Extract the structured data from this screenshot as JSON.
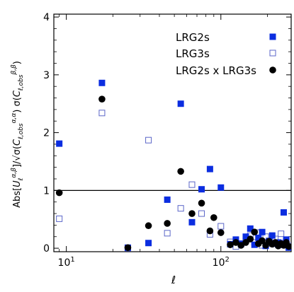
{
  "chart_data": {
    "type": "scatter",
    "xlabel": "ℓ",
    "ylabel": "Abs[U_ℓ^{α,β}]/√(σ(C_{ℓ,obs}^{α,α}) σ(C_{ℓ,obs}^{β,β}))",
    "xscale": "log",
    "xlim": [
      8.3,
      285
    ],
    "ylim": [
      -0.06,
      4.05
    ],
    "x_ticks": [
      {
        "value": 10,
        "label": "10",
        "exp": "1"
      },
      {
        "value": 100,
        "label": "10",
        "exp": "2"
      }
    ],
    "y_ticks": [
      0,
      1,
      2,
      3,
      4
    ],
    "y_tick_labels": [
      "0",
      "1",
      "2",
      "3",
      "4"
    ],
    "reference_line": {
      "y": 1
    },
    "grid": false,
    "legend_position": "top-right",
    "colors": {
      "lrg2s": "#0b2de0",
      "lrg3s": "#5b66c8",
      "cross": "#000000"
    },
    "series": [
      {
        "name": "LRG2s",
        "marker": "filled-square",
        "color": "#0b2de0",
        "x": [
          9,
          17,
          25,
          34,
          45,
          55,
          65,
          75,
          85,
          100,
          115,
          125,
          135,
          145,
          155,
          165,
          175,
          185,
          195,
          205,
          215,
          225,
          235,
          245,
          255,
          265,
          275
        ],
        "y": [
          1.81,
          2.86,
          0.01,
          0.09,
          0.84,
          2.5,
          0.45,
          1.02,
          1.37,
          1.05,
          0.07,
          0.15,
          0.08,
          0.2,
          0.34,
          0.06,
          0.18,
          0.28,
          0.04,
          0.12,
          0.22,
          0.08,
          0.1,
          0.06,
          0.62,
          0.15,
          0.01
        ]
      },
      {
        "name": "LRG3s",
        "marker": "open-square",
        "color": "#5b66c8",
        "x": [
          9,
          17,
          25,
          34,
          45,
          55,
          65,
          75,
          85,
          100,
          115,
          125,
          135,
          145,
          155,
          165,
          175,
          185,
          195,
          205,
          215,
          225,
          235,
          245,
          255,
          265,
          275
        ],
        "y": [
          0.51,
          2.34,
          0.0,
          1.87,
          0.26,
          0.69,
          1.1,
          0.6,
          0.24,
          0.38,
          0.11,
          0.03,
          0.07,
          0.15,
          0.22,
          0.1,
          0.27,
          0.05,
          0.2,
          0.13,
          0.08,
          0.16,
          0.06,
          0.25,
          0.09,
          0.12,
          0.04
        ]
      },
      {
        "name": "LRG2s x LRG3s",
        "marker": "filled-circle",
        "color": "#000000",
        "x": [
          9,
          17,
          25,
          34,
          45,
          55,
          65,
          75,
          85,
          90,
          100,
          115,
          125,
          135,
          145,
          155,
          165,
          175,
          185,
          195,
          205,
          215,
          225,
          235,
          245,
          255,
          265,
          275
        ],
        "y": [
          0.96,
          2.58,
          0.01,
          0.39,
          0.43,
          1.33,
          0.6,
          0.78,
          0.3,
          0.53,
          0.27,
          0.06,
          0.1,
          0.05,
          0.1,
          0.16,
          0.28,
          0.08,
          0.13,
          0.05,
          0.12,
          0.07,
          0.1,
          0.04,
          0.08,
          0.05,
          0.1,
          0.03
        ]
      }
    ]
  }
}
